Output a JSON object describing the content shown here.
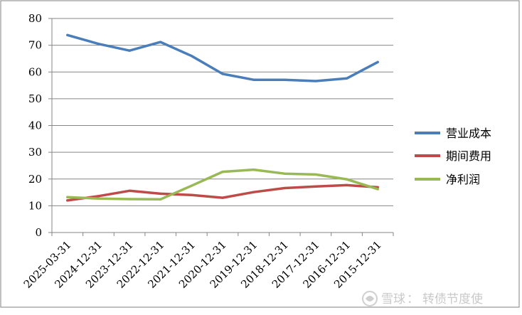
{
  "chart_data": {
    "type": "line",
    "categories": [
      "2025-03-31",
      "2024-12-31",
      "2023-12-31",
      "2022-12-31",
      "2021-12-31",
      "2020-12-31",
      "2019-12-31",
      "2018-12-31",
      "2017-12-31",
      "2016-12-31",
      "2015-12-31"
    ],
    "series": [
      {
        "name": "营业成本",
        "color": "#4a7ebb",
        "values": [
          73.8,
          70.5,
          68.0,
          71.2,
          66.0,
          59.3,
          57.1,
          57.1,
          56.6,
          57.6,
          63.7
        ]
      },
      {
        "name": "期间费用",
        "color": "#be4b48",
        "values": [
          12.0,
          13.6,
          15.6,
          14.5,
          14.0,
          13.0,
          15.1,
          16.6,
          17.2,
          17.7,
          16.9
        ]
      },
      {
        "name": "净利润",
        "color": "#98b954",
        "values": [
          13.2,
          12.7,
          12.5,
          12.4,
          17.5,
          22.7,
          23.5,
          22.0,
          21.7,
          19.9,
          16.2
        ]
      }
    ],
    "yticks": [
      "0",
      "10",
      "20",
      "30",
      "40",
      "50",
      "60",
      "70",
      "80"
    ],
    "ylim": [
      0,
      80
    ],
    "grid": true,
    "legend_position": "right"
  },
  "watermark": {
    "brand": "雪球",
    "separator": "：",
    "author": "转债节度使"
  }
}
